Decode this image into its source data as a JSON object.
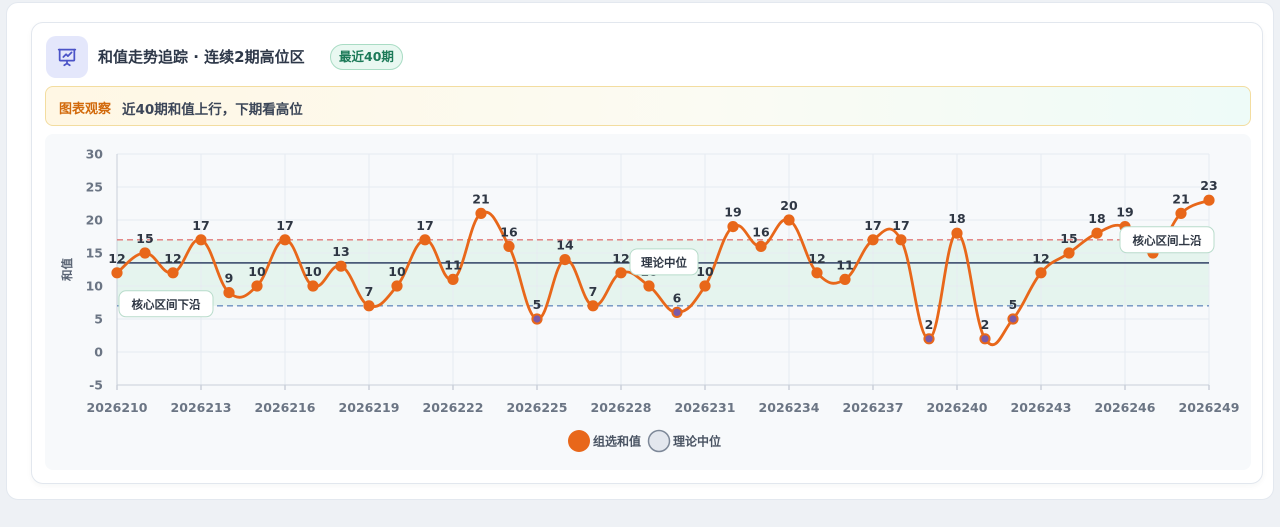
{
  "header": {
    "icon": "presentation-chart-icon",
    "title": "和值走势追踪 · 连续2期高位区",
    "badge": "最近40期"
  },
  "observation": {
    "tag": "图表观察",
    "text": "近40期和值上行，下期看高位"
  },
  "colors": {
    "series": "#e8671a",
    "median": "#4a5a78",
    "upper": "#e27a7a",
    "lower": "#6d8fc0",
    "band": "#dff2ea"
  },
  "chart_data": {
    "type": "line",
    "ylabel": "和值",
    "ylim": [
      -5,
      30
    ],
    "yticks": [
      -5,
      0,
      5,
      10,
      15,
      20,
      25,
      30
    ],
    "x": [
      "2026210",
      "2026211",
      "2026212",
      "2026213",
      "2026214",
      "2026215",
      "2026216",
      "2026217",
      "2026218",
      "2026219",
      "2026220",
      "2026221",
      "2026222",
      "2026223",
      "2026224",
      "2026225",
      "2026226",
      "2026227",
      "2026228",
      "2026229",
      "2026230",
      "2026231",
      "2026232",
      "2026233",
      "2026234",
      "2026235",
      "2026236",
      "2026237",
      "2026238",
      "2026239",
      "2026240",
      "2026241",
      "2026242",
      "2026243",
      "2026244",
      "2026245",
      "2026246",
      "2026247",
      "2026248",
      "2026249"
    ],
    "xtick_labels": [
      "2026210",
      "2026213",
      "2026216",
      "2026219",
      "2026222",
      "2026225",
      "2026228",
      "2026231",
      "2026234",
      "2026237",
      "2026240",
      "2026243",
      "2026246",
      "2026249"
    ],
    "series": [
      {
        "name": "组选和值",
        "values": [
          12,
          15,
          12,
          17,
          9,
          10,
          17,
          10,
          13,
          7,
          10,
          17,
          11,
          21,
          16,
          5,
          14,
          7,
          12,
          10,
          6,
          10,
          19,
          16,
          20,
          12,
          11,
          17,
          17,
          2,
          18,
          2,
          5,
          12,
          15,
          18,
          19,
          15,
          21,
          23
        ]
      }
    ],
    "reference_lines": {
      "median": 13.5,
      "band_low": 7,
      "band_high": 17
    },
    "annotations": {
      "median": "理论中位",
      "band_low": "核心区间下沿",
      "band_high": "核心区间上沿"
    },
    "legend": {
      "series": "组选和值",
      "median": "理论中位",
      "placement": "bottom"
    },
    "grid": true
  }
}
